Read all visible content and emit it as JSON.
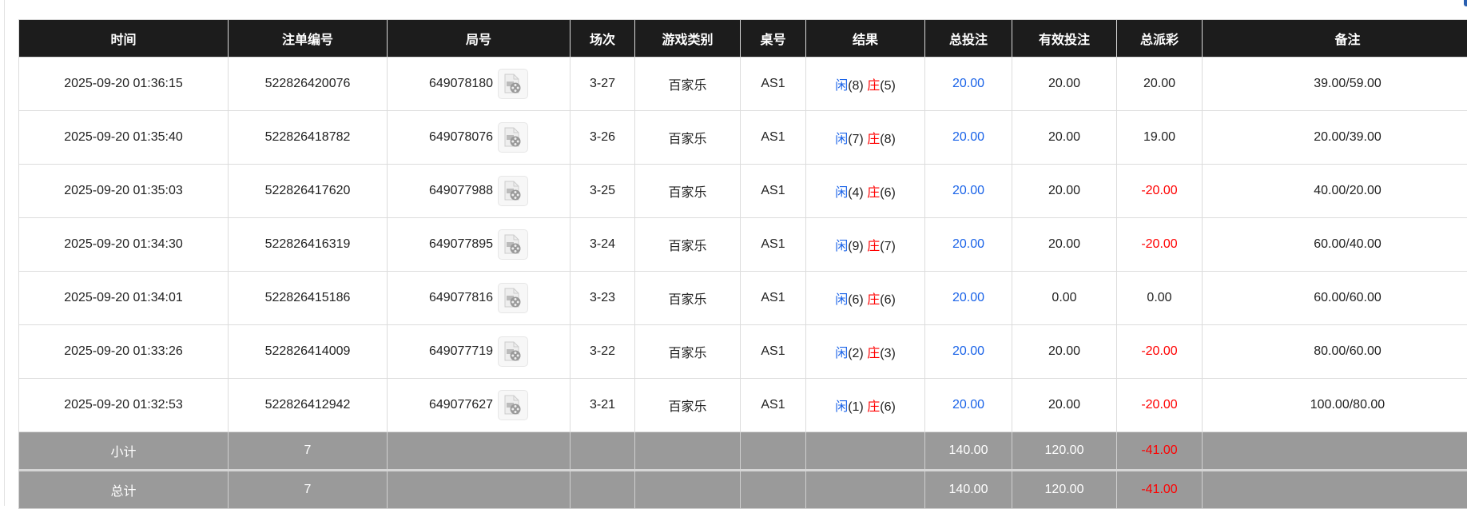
{
  "columns": [
    "时间",
    "注单编号",
    "局号",
    "场次",
    "游戏类别",
    "桌号",
    "结果",
    "总投注",
    "有效投注",
    "总派彩",
    "备注"
  ],
  "rows": [
    {
      "time": "2025-09-20 01:36:15",
      "bet_id": "522826420076",
      "game_id": "649078180",
      "round": "3-27",
      "game_type": "百家乐",
      "table": "AS1",
      "player_label": "闲",
      "player_score": "(8)",
      "banker_label": "庄",
      "banker_score": "(5)",
      "total_bet": "20.00",
      "valid_bet": "20.00",
      "payout": "20.00",
      "payout_negative": false,
      "note": "39.00/59.00"
    },
    {
      "time": "2025-09-20 01:35:40",
      "bet_id": "522826418782",
      "game_id": "649078076",
      "round": "3-26",
      "game_type": "百家乐",
      "table": "AS1",
      "player_label": "闲",
      "player_score": "(7)",
      "banker_label": "庄",
      "banker_score": "(8)",
      "total_bet": "20.00",
      "valid_bet": "20.00",
      "payout": "19.00",
      "payout_negative": false,
      "note": "20.00/39.00"
    },
    {
      "time": "2025-09-20 01:35:03",
      "bet_id": "522826417620",
      "game_id": "649077988",
      "round": "3-25",
      "game_type": "百家乐",
      "table": "AS1",
      "player_label": "闲",
      "player_score": "(4)",
      "banker_label": "庄",
      "banker_score": "(6)",
      "total_bet": "20.00",
      "valid_bet": "20.00",
      "payout": "-20.00",
      "payout_negative": true,
      "note": "40.00/20.00"
    },
    {
      "time": "2025-09-20 01:34:30",
      "bet_id": "522826416319",
      "game_id": "649077895",
      "round": "3-24",
      "game_type": "百家乐",
      "table": "AS1",
      "player_label": "闲",
      "player_score": "(9)",
      "banker_label": "庄",
      "banker_score": "(7)",
      "total_bet": "20.00",
      "valid_bet": "20.00",
      "payout": "-20.00",
      "payout_negative": true,
      "note": "60.00/40.00"
    },
    {
      "time": "2025-09-20 01:34:01",
      "bet_id": "522826415186",
      "game_id": "649077816",
      "round": "3-23",
      "game_type": "百家乐",
      "table": "AS1",
      "player_label": "闲",
      "player_score": "(6)",
      "banker_label": "庄",
      "banker_score": "(6)",
      "total_bet": "20.00",
      "valid_bet": "0.00",
      "payout": "0.00",
      "payout_negative": false,
      "note": "60.00/60.00"
    },
    {
      "time": "2025-09-20 01:33:26",
      "bet_id": "522826414009",
      "game_id": "649077719",
      "round": "3-22",
      "game_type": "百家乐",
      "table": "AS1",
      "player_label": "闲",
      "player_score": "(2)",
      "banker_label": "庄",
      "banker_score": "(3)",
      "total_bet": "20.00",
      "valid_bet": "20.00",
      "payout": "-20.00",
      "payout_negative": true,
      "note": "80.00/60.00"
    },
    {
      "time": "2025-09-20 01:32:53",
      "bet_id": "522826412942",
      "game_id": "649077627",
      "round": "3-21",
      "game_type": "百家乐",
      "table": "AS1",
      "player_label": "闲",
      "player_score": "(1)",
      "banker_label": "庄",
      "banker_score": "(6)",
      "total_bet": "20.00",
      "valid_bet": "20.00",
      "payout": "-20.00",
      "payout_negative": true,
      "note": "100.00/80.00"
    }
  ],
  "subtotal": {
    "label": "小计",
    "count": "7",
    "total_bet": "140.00",
    "valid_bet": "120.00",
    "payout": "-41.00"
  },
  "grand_total": {
    "label": "总计",
    "count": "7",
    "total_bet": "140.00",
    "valid_bet": "120.00",
    "payout": "-41.00"
  },
  "colors": {
    "header_bg": "#1c1c1c",
    "player": "#1a63e8",
    "banker": "#ff0000",
    "negative": "#ff0000",
    "summary_bg": "#9a9a9a"
  },
  "icons": {
    "replay": "video-file-icon"
  }
}
